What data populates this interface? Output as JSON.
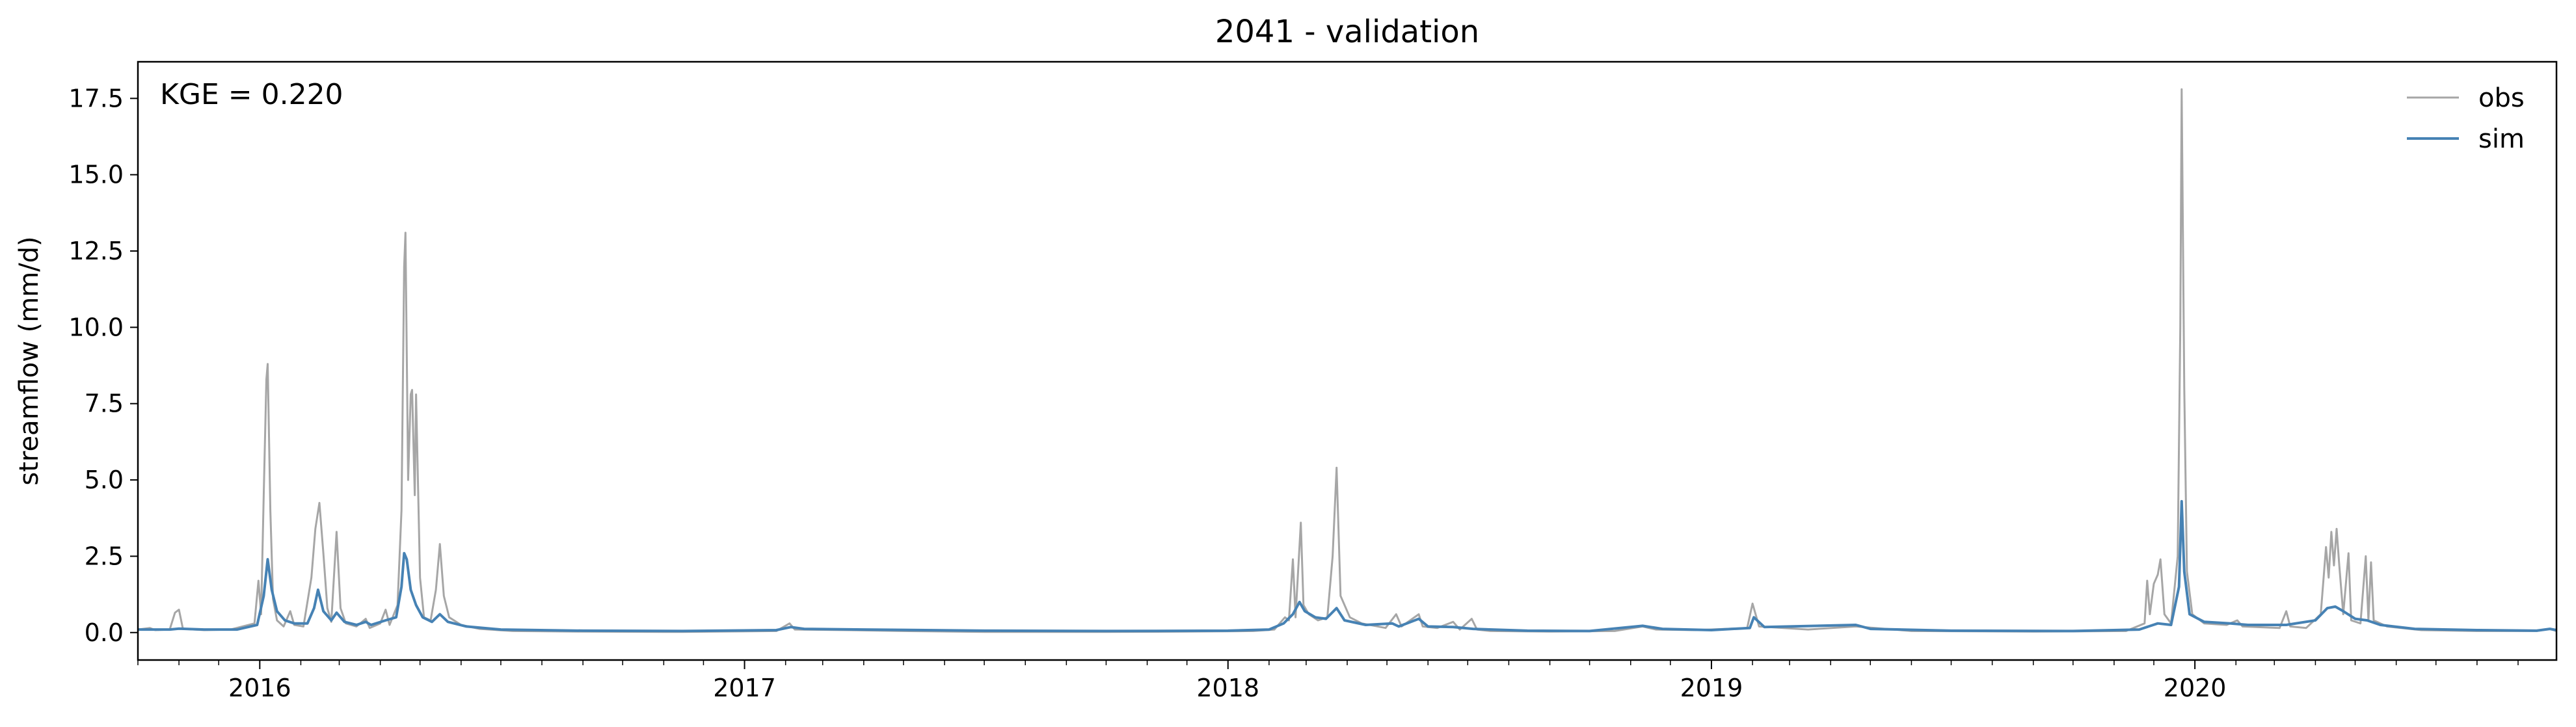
{
  "chart_data": {
    "type": "line",
    "title": "2041 - validation",
    "xlabel": "",
    "ylabel": "streamflow (mm/d)",
    "xlim": [
      "2015-10-01",
      "2020-09-30"
    ],
    "ylim": [
      -0.9,
      18.7
    ],
    "y_ticks": [
      0.0,
      2.5,
      5.0,
      7.5,
      10.0,
      12.5,
      15.0,
      17.5
    ],
    "y_tick_labels": [
      "0.0",
      "2.5",
      "5.0",
      "7.5",
      "10.0",
      "12.5",
      "15.0",
      "17.5"
    ],
    "x_ticks": [
      "2016-01-01",
      "2017-01-01",
      "2018-01-01",
      "2019-01-01",
      "2020-01-01"
    ],
    "x_tick_labels": [
      "2016",
      "2017",
      "2018",
      "2019",
      "2020"
    ],
    "grid": false,
    "legend_position": "upper right",
    "annotation": "KGE = 0.220",
    "series": [
      {
        "name": "obs",
        "color": "#a6a6a6",
        "points": [
          [
            "2015-10-01",
            0.1
          ],
          [
            "2015-10-10",
            0.15
          ],
          [
            "2015-10-14",
            0.08
          ],
          [
            "2015-10-25",
            0.1
          ],
          [
            "2015-10-29",
            0.65
          ],
          [
            "2015-11-01",
            0.75
          ],
          [
            "2015-11-04",
            0.12
          ],
          [
            "2015-11-20",
            0.08
          ],
          [
            "2015-12-10",
            0.1
          ],
          [
            "2015-12-28",
            0.3
          ],
          [
            "2015-12-31",
            1.7
          ],
          [
            "2016-01-02",
            0.6
          ],
          [
            "2016-01-04",
            4.5
          ],
          [
            "2016-01-06",
            8.3
          ],
          [
            "2016-01-07",
            8.8
          ],
          [
            "2016-01-09",
            4.0
          ],
          [
            "2016-01-11",
            1.1
          ],
          [
            "2016-01-14",
            0.4
          ],
          [
            "2016-01-19",
            0.2
          ],
          [
            "2016-01-24",
            0.7
          ],
          [
            "2016-01-27",
            0.25
          ],
          [
            "2016-02-03",
            0.2
          ],
          [
            "2016-02-09",
            1.8
          ],
          [
            "2016-02-12",
            3.4
          ],
          [
            "2016-02-15",
            4.25
          ],
          [
            "2016-02-18",
            2.6
          ],
          [
            "2016-02-21",
            0.8
          ],
          [
            "2016-02-24",
            0.35
          ],
          [
            "2016-02-28",
            3.3
          ],
          [
            "2016-03-02",
            0.8
          ],
          [
            "2016-03-06",
            0.3
          ],
          [
            "2016-03-14",
            0.2
          ],
          [
            "2016-03-21",
            0.45
          ],
          [
            "2016-03-24",
            0.15
          ],
          [
            "2016-04-01",
            0.3
          ],
          [
            "2016-04-05",
            0.75
          ],
          [
            "2016-04-08",
            0.25
          ],
          [
            "2016-04-14",
            0.9
          ],
          [
            "2016-04-17",
            4.0
          ],
          [
            "2016-04-19",
            12.0
          ],
          [
            "2016-04-20",
            13.1
          ],
          [
            "2016-04-22",
            5.0
          ],
          [
            "2016-04-24",
            7.8
          ],
          [
            "2016-04-25",
            7.95
          ],
          [
            "2016-04-27",
            4.5
          ],
          [
            "2016-04-28",
            7.8
          ],
          [
            "2016-05-01",
            1.8
          ],
          [
            "2016-05-04",
            0.5
          ],
          [
            "2016-05-09",
            0.4
          ],
          [
            "2016-05-13",
            1.4
          ],
          [
            "2016-05-16",
            2.9
          ],
          [
            "2016-05-19",
            1.2
          ],
          [
            "2016-05-23",
            0.5
          ],
          [
            "2016-06-01",
            0.25
          ],
          [
            "2016-06-15",
            0.12
          ],
          [
            "2016-07-10",
            0.05
          ],
          [
            "2016-09-01",
            0.03
          ],
          [
            "2016-11-15",
            0.02
          ],
          [
            "2017-01-25",
            0.05
          ],
          [
            "2017-02-04",
            0.3
          ],
          [
            "2017-02-08",
            0.1
          ],
          [
            "2017-03-20",
            0.08
          ],
          [
            "2017-05-01",
            0.05
          ],
          [
            "2017-07-01",
            0.02
          ],
          [
            "2017-10-01",
            0.02
          ],
          [
            "2017-12-01",
            0.03
          ],
          [
            "2018-01-20",
            0.05
          ],
          [
            "2018-02-05",
            0.1
          ],
          [
            "2018-02-13",
            0.5
          ],
          [
            "2018-02-16",
            0.4
          ],
          [
            "2018-02-19",
            2.4
          ],
          [
            "2018-02-21",
            0.5
          ],
          [
            "2018-02-25",
            3.6
          ],
          [
            "2018-02-27",
            0.9
          ],
          [
            "2018-03-03",
            0.6
          ],
          [
            "2018-03-10",
            0.4
          ],
          [
            "2018-03-17",
            0.5
          ],
          [
            "2018-03-21",
            2.5
          ],
          [
            "2018-03-24",
            5.4
          ],
          [
            "2018-03-27",
            1.2
          ],
          [
            "2018-04-03",
            0.5
          ],
          [
            "2018-04-12",
            0.3
          ],
          [
            "2018-04-30",
            0.15
          ],
          [
            "2018-05-08",
            0.6
          ],
          [
            "2018-05-12",
            0.2
          ],
          [
            "2018-05-25",
            0.6
          ],
          [
            "2018-05-28",
            0.2
          ],
          [
            "2018-06-08",
            0.15
          ],
          [
            "2018-06-20",
            0.35
          ],
          [
            "2018-06-25",
            0.1
          ],
          [
            "2018-07-04",
            0.45
          ],
          [
            "2018-07-08",
            0.1
          ],
          [
            "2018-07-18",
            0.05
          ],
          [
            "2018-09-01",
            0.03
          ],
          [
            "2018-10-20",
            0.05
          ],
          [
            "2018-11-10",
            0.2
          ],
          [
            "2018-11-20",
            0.1
          ],
          [
            "2018-12-20",
            0.08
          ],
          [
            "2019-01-28",
            0.15
          ],
          [
            "2019-02-01",
            0.95
          ],
          [
            "2019-02-06",
            0.2
          ],
          [
            "2019-03-15",
            0.1
          ],
          [
            "2019-04-20",
            0.2
          ],
          [
            "2019-06-01",
            0.05
          ],
          [
            "2019-09-01",
            0.03
          ],
          [
            "2019-11-10",
            0.05
          ],
          [
            "2019-11-24",
            0.3
          ],
          [
            "2019-11-26",
            1.7
          ],
          [
            "2019-11-28",
            0.6
          ],
          [
            "2019-12-01",
            1.6
          ],
          [
            "2019-12-04",
            1.9
          ],
          [
            "2019-12-06",
            2.4
          ],
          [
            "2019-12-09",
            0.6
          ],
          [
            "2019-12-14",
            0.3
          ],
          [
            "2019-12-19",
            2.5
          ],
          [
            "2019-12-21",
            10.0
          ],
          [
            "2019-12-22",
            17.8
          ],
          [
            "2019-12-24",
            8.0
          ],
          [
            "2019-12-26",
            2.0
          ],
          [
            "2019-12-30",
            0.6
          ],
          [
            "2020-01-08",
            0.3
          ],
          [
            "2020-01-25",
            0.25
          ],
          [
            "2020-02-02",
            0.4
          ],
          [
            "2020-02-06",
            0.2
          ],
          [
            "2020-03-05",
            0.15
          ],
          [
            "2020-03-10",
            0.7
          ],
          [
            "2020-03-13",
            0.2
          ],
          [
            "2020-03-25",
            0.15
          ],
          [
            "2020-04-05",
            0.6
          ],
          [
            "2020-04-09",
            2.8
          ],
          [
            "2020-04-11",
            1.8
          ],
          [
            "2020-04-13",
            3.3
          ],
          [
            "2020-04-15",
            2.2
          ],
          [
            "2020-04-17",
            3.4
          ],
          [
            "2020-04-19",
            2.2
          ],
          [
            "2020-04-22",
            0.6
          ],
          [
            "2020-04-26",
            2.6
          ],
          [
            "2020-04-28",
            0.4
          ],
          [
            "2020-05-05",
            0.3
          ],
          [
            "2020-05-09",
            2.5
          ],
          [
            "2020-05-11",
            0.4
          ],
          [
            "2020-05-13",
            2.3
          ],
          [
            "2020-05-15",
            0.4
          ],
          [
            "2020-05-25",
            0.2
          ],
          [
            "2020-06-20",
            0.08
          ],
          [
            "2020-08-01",
            0.05
          ],
          [
            "2020-09-15",
            0.05
          ],
          [
            "2020-09-25",
            0.12
          ],
          [
            "2020-09-30",
            0.05
          ]
        ]
      },
      {
        "name": "sim",
        "color": "#4682b4",
        "points": [
          [
            "2015-10-01",
            0.1
          ],
          [
            "2015-10-25",
            0.1
          ],
          [
            "2015-11-01",
            0.13
          ],
          [
            "2015-11-20",
            0.1
          ],
          [
            "2015-12-15",
            0.1
          ],
          [
            "2015-12-30",
            0.25
          ],
          [
            "2016-01-04",
            1.2
          ],
          [
            "2016-01-07",
            2.4
          ],
          [
            "2016-01-10",
            1.4
          ],
          [
            "2016-01-14",
            0.7
          ],
          [
            "2016-01-20",
            0.4
          ],
          [
            "2016-01-27",
            0.3
          ],
          [
            "2016-02-06",
            0.3
          ],
          [
            "2016-02-11",
            0.8
          ],
          [
            "2016-02-14",
            1.4
          ],
          [
            "2016-02-18",
            0.7
          ],
          [
            "2016-02-24",
            0.4
          ],
          [
            "2016-02-28",
            0.65
          ],
          [
            "2016-03-05",
            0.35
          ],
          [
            "2016-03-14",
            0.25
          ],
          [
            "2016-03-21",
            0.35
          ],
          [
            "2016-03-25",
            0.25
          ],
          [
            "2016-04-05",
            0.4
          ],
          [
            "2016-04-13",
            0.5
          ],
          [
            "2016-04-17",
            1.5
          ],
          [
            "2016-04-19",
            2.6
          ],
          [
            "2016-04-21",
            2.4
          ],
          [
            "2016-04-24",
            1.4
          ],
          [
            "2016-04-28",
            0.9
          ],
          [
            "2016-05-03",
            0.5
          ],
          [
            "2016-05-10",
            0.35
          ],
          [
            "2016-05-16",
            0.6
          ],
          [
            "2016-05-22",
            0.35
          ],
          [
            "2016-06-05",
            0.2
          ],
          [
            "2016-07-01",
            0.1
          ],
          [
            "2016-09-01",
            0.06
          ],
          [
            "2016-11-15",
            0.05
          ],
          [
            "2017-01-25",
            0.08
          ],
          [
            "2017-02-05",
            0.18
          ],
          [
            "2017-02-15",
            0.12
          ],
          [
            "2017-04-01",
            0.1
          ],
          [
            "2017-07-01",
            0.06
          ],
          [
            "2017-10-01",
            0.05
          ],
          [
            "2018-01-01",
            0.06
          ],
          [
            "2018-02-01",
            0.1
          ],
          [
            "2018-02-12",
            0.3
          ],
          [
            "2018-02-19",
            0.6
          ],
          [
            "2018-02-24",
            1.0
          ],
          [
            "2018-02-28",
            0.7
          ],
          [
            "2018-03-08",
            0.5
          ],
          [
            "2018-03-16",
            0.45
          ],
          [
            "2018-03-24",
            0.8
          ],
          [
            "2018-03-30",
            0.4
          ],
          [
            "2018-04-15",
            0.25
          ],
          [
            "2018-05-05",
            0.3
          ],
          [
            "2018-05-10",
            0.2
          ],
          [
            "2018-05-25",
            0.45
          ],
          [
            "2018-06-01",
            0.2
          ],
          [
            "2018-06-20",
            0.18
          ],
          [
            "2018-07-05",
            0.12
          ],
          [
            "2018-08-15",
            0.06
          ],
          [
            "2018-10-01",
            0.05
          ],
          [
            "2018-11-10",
            0.22
          ],
          [
            "2018-11-25",
            0.12
          ],
          [
            "2019-01-01",
            0.08
          ],
          [
            "2019-01-30",
            0.15
          ],
          [
            "2019-02-02",
            0.5
          ],
          [
            "2019-02-10",
            0.18
          ],
          [
            "2019-04-20",
            0.25
          ],
          [
            "2019-05-01",
            0.12
          ],
          [
            "2019-07-01",
            0.06
          ],
          [
            "2019-10-01",
            0.05
          ],
          [
            "2019-11-20",
            0.1
          ],
          [
            "2019-12-04",
            0.3
          ],
          [
            "2019-12-14",
            0.25
          ],
          [
            "2019-12-20",
            1.5
          ],
          [
            "2019-12-22",
            4.3
          ],
          [
            "2019-12-24",
            2.0
          ],
          [
            "2019-12-28",
            0.6
          ],
          [
            "2020-01-08",
            0.35
          ],
          [
            "2020-01-28",
            0.3
          ],
          [
            "2020-02-10",
            0.25
          ],
          [
            "2020-03-10",
            0.25
          ],
          [
            "2020-04-01",
            0.4
          ],
          [
            "2020-04-10",
            0.8
          ],
          [
            "2020-04-16",
            0.85
          ],
          [
            "2020-04-22",
            0.7
          ],
          [
            "2020-05-01",
            0.45
          ],
          [
            "2020-05-10",
            0.4
          ],
          [
            "2020-05-20",
            0.25
          ],
          [
            "2020-06-15",
            0.12
          ],
          [
            "2020-08-01",
            0.08
          ],
          [
            "2020-09-15",
            0.06
          ],
          [
            "2020-09-25",
            0.12
          ],
          [
            "2020-09-30",
            0.08
          ]
        ]
      }
    ]
  }
}
